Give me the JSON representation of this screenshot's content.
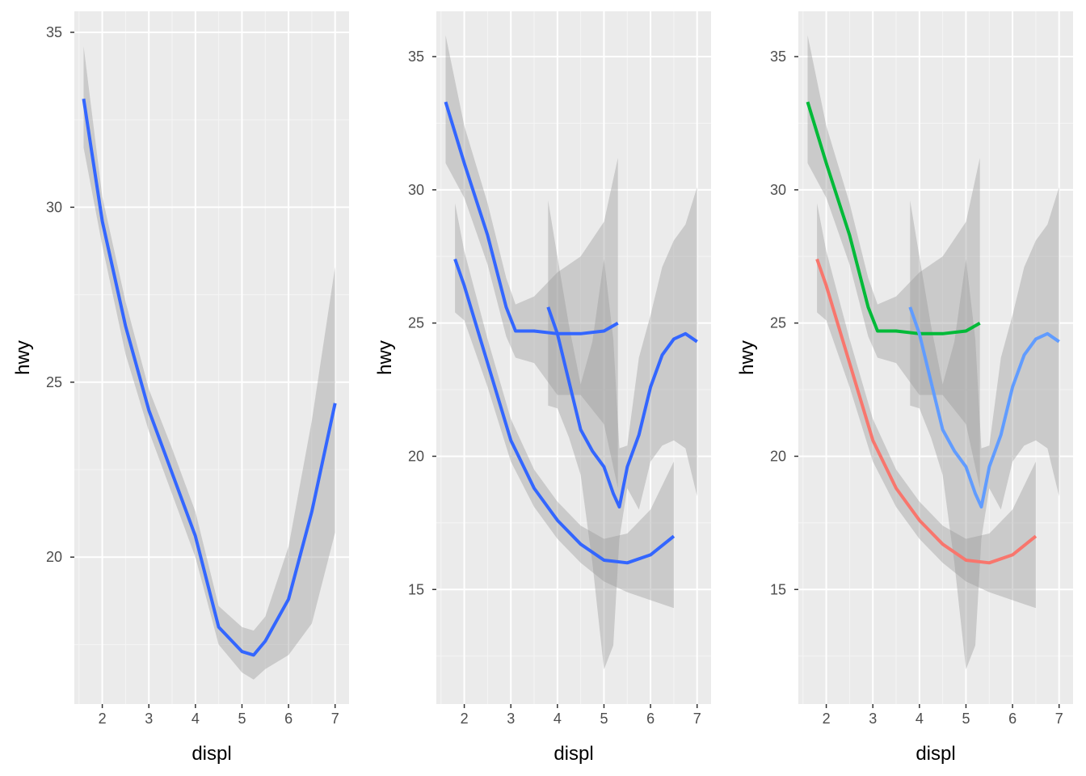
{
  "colors": {
    "panel_background": "#ebebeb",
    "grid_major": "#ffffff",
    "grid_minor": "#f5f5f5",
    "ribbon": "#999999",
    "tick": "#333333",
    "tick_label": "#4d4d4d",
    "default_line": "#3366ff",
    "red_line": "#f8766d",
    "green_line": "#00ba38",
    "blue_line": "#619cff"
  },
  "chart_data": [
    {
      "type": "line",
      "xlabel": "displ",
      "ylabel": "hwy",
      "xlim": [
        1.4,
        7.3
      ],
      "ylim": [
        15.8,
        35.6
      ],
      "x_ticks": [
        2,
        3,
        4,
        5,
        6,
        7
      ],
      "y_ticks": [
        20,
        25,
        30,
        35
      ],
      "grid": true,
      "series": [
        {
          "color": "#3366ff",
          "x": [
            1.6,
            2.0,
            2.5,
            3.0,
            3.5,
            4.0,
            4.5,
            5.0,
            5.25,
            5.5,
            6.0,
            6.5,
            7.0
          ],
          "y": [
            33.1,
            29.6,
            26.6,
            24.2,
            22.4,
            20.6,
            18.0,
            17.3,
            17.2,
            17.6,
            18.8,
            21.3,
            24.4
          ],
          "lower": [
            31.7,
            28.9,
            25.8,
            23.6,
            21.8,
            20.0,
            17.5,
            16.7,
            16.5,
            16.8,
            17.2,
            18.1,
            20.7
          ],
          "upper": [
            34.6,
            30.3,
            27.3,
            24.8,
            23.1,
            21.3,
            18.6,
            18.0,
            17.9,
            18.3,
            20.3,
            23.9,
            28.3
          ]
        }
      ]
    },
    {
      "type": "line",
      "xlabel": "displ",
      "ylabel": "hwy",
      "xlim": [
        1.4,
        7.3
      ],
      "ylim": [
        10.7,
        36.7
      ],
      "x_ticks": [
        2,
        3,
        4,
        5,
        6,
        7
      ],
      "y_ticks": [
        15,
        20,
        25,
        30,
        35
      ],
      "grid": true,
      "series": [
        {
          "color": "#3366ff",
          "x": [
            1.8,
            2.0,
            2.5,
            3.0,
            3.5,
            4.0,
            4.5,
            5.0,
            5.5,
            6.0,
            6.5
          ],
          "y": [
            27.4,
            26.4,
            23.5,
            20.6,
            18.8,
            17.6,
            16.7,
            16.1,
            16.0,
            16.3,
            17.0
          ],
          "lower": [
            25.4,
            25.1,
            22.6,
            19.8,
            18.1,
            16.9,
            16.0,
            15.3,
            14.9,
            14.6,
            14.3
          ],
          "upper": [
            29.5,
            27.7,
            24.4,
            21.4,
            19.5,
            18.3,
            17.4,
            16.9,
            17.1,
            18.0,
            19.8
          ]
        },
        {
          "color": "#3366ff",
          "x": [
            1.6,
            2.0,
            2.5,
            2.9,
            3.1,
            3.5,
            4.0,
            4.5,
            5.0,
            5.3
          ],
          "y": [
            33.3,
            31.0,
            28.3,
            25.6,
            24.7,
            24.7,
            24.6,
            24.6,
            24.7,
            25.0
          ],
          "lower": [
            31.0,
            29.7,
            27.2,
            24.5,
            23.7,
            23.5,
            22.3,
            22.3,
            21.2,
            18.8
          ],
          "upper": [
            35.8,
            32.4,
            29.5,
            26.7,
            25.7,
            26.0,
            26.9,
            27.5,
            28.8,
            31.2
          ]
        },
        {
          "color": "#3366ff",
          "x": [
            3.8,
            4.0,
            4.25,
            4.5,
            4.75,
            5.0,
            5.2,
            5.33,
            5.5,
            5.75,
            6.0,
            6.25,
            6.5,
            6.75,
            7.0
          ],
          "y": [
            25.6,
            24.6,
            22.8,
            21.0,
            20.2,
            19.6,
            18.6,
            18.1,
            19.6,
            20.8,
            22.6,
            23.8,
            24.4,
            24.6,
            24.3
          ],
          "lower": [
            21.9,
            21.8,
            20.7,
            19.3,
            16.0,
            12.0,
            12.9,
            16.9,
            18.8,
            18.0,
            19.8,
            20.4,
            20.6,
            20.3,
            18.5
          ],
          "upper": [
            29.6,
            27.5,
            24.9,
            22.7,
            24.3,
            27.4,
            24.4,
            20.3,
            20.4,
            23.7,
            25.3,
            27.1,
            28.1,
            28.7,
            30.1
          ]
        }
      ]
    },
    {
      "type": "line",
      "xlabel": "displ",
      "ylabel": "hwy",
      "xlim": [
        1.4,
        7.3
      ],
      "ylim": [
        10.7,
        36.7
      ],
      "x_ticks": [
        2,
        3,
        4,
        5,
        6,
        7
      ],
      "y_ticks": [
        15,
        20,
        25,
        30,
        35
      ],
      "grid": true,
      "series": [
        {
          "color": "#f8766d",
          "x": [
            1.8,
            2.0,
            2.5,
            3.0,
            3.5,
            4.0,
            4.5,
            5.0,
            5.5,
            6.0,
            6.5
          ],
          "y": [
            27.4,
            26.4,
            23.5,
            20.6,
            18.8,
            17.6,
            16.7,
            16.1,
            16.0,
            16.3,
            17.0
          ],
          "lower": [
            25.4,
            25.1,
            22.6,
            19.8,
            18.1,
            16.9,
            16.0,
            15.3,
            14.9,
            14.6,
            14.3
          ],
          "upper": [
            29.5,
            27.7,
            24.4,
            21.4,
            19.5,
            18.3,
            17.4,
            16.9,
            17.1,
            18.0,
            19.8
          ]
        },
        {
          "color": "#00ba38",
          "x": [
            1.6,
            2.0,
            2.5,
            2.9,
            3.1,
            3.5,
            4.0,
            4.5,
            5.0,
            5.3
          ],
          "y": [
            33.3,
            31.0,
            28.3,
            25.6,
            24.7,
            24.7,
            24.6,
            24.6,
            24.7,
            25.0
          ],
          "lower": [
            31.0,
            29.7,
            27.2,
            24.5,
            23.7,
            23.5,
            22.3,
            22.3,
            21.2,
            18.8
          ],
          "upper": [
            35.8,
            32.4,
            29.5,
            26.7,
            25.7,
            26.0,
            26.9,
            27.5,
            28.8,
            31.2
          ]
        },
        {
          "color": "#619cff",
          "x": [
            3.8,
            4.0,
            4.25,
            4.5,
            4.75,
            5.0,
            5.2,
            5.33,
            5.5,
            5.75,
            6.0,
            6.25,
            6.5,
            6.75,
            7.0
          ],
          "y": [
            25.6,
            24.6,
            22.8,
            21.0,
            20.2,
            19.6,
            18.6,
            18.1,
            19.6,
            20.8,
            22.6,
            23.8,
            24.4,
            24.6,
            24.3
          ],
          "lower": [
            21.9,
            21.8,
            20.7,
            19.3,
            16.0,
            12.0,
            12.9,
            16.9,
            18.8,
            18.0,
            19.8,
            20.4,
            20.6,
            20.3,
            18.5
          ],
          "upper": [
            29.6,
            27.5,
            24.9,
            22.7,
            24.3,
            27.4,
            24.4,
            20.3,
            20.4,
            23.7,
            25.3,
            27.1,
            28.1,
            28.7,
            30.1
          ]
        }
      ]
    }
  ]
}
